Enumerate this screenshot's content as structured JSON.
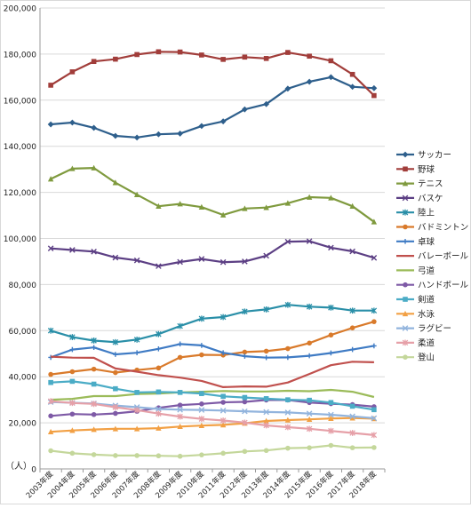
{
  "chart_data": {
    "type": "line",
    "title": "",
    "xlabel": "",
    "ylabel": "（人）",
    "ylim": [
      0,
      200000
    ],
    "y_ticks": [
      "0",
      "20,000",
      "40,000",
      "60,000",
      "80,000",
      "100,000",
      "120,000",
      "140,000",
      "160,000",
      "180,000",
      "200,000"
    ],
    "y_tick_values": [
      0,
      20000,
      40000,
      60000,
      80000,
      100000,
      120000,
      140000,
      160000,
      180000,
      200000
    ],
    "grid": true,
    "legend_position": "right",
    "categories": [
      "2003年度",
      "2004年度",
      "2005年度",
      "2006年度",
      "2007年度",
      "2008年度",
      "2009年度",
      "2010年度",
      "2011年度",
      "2012年度",
      "2013年度",
      "2014年度",
      "2015年度",
      "2016年度",
      "2017年度",
      "2018年度"
    ],
    "series": [
      {
        "name": "サッカー",
        "color": "#2e5f8c",
        "marker": "diamond",
        "values": [
          149500,
          150300,
          148000,
          144500,
          143800,
          145200,
          145500,
          148800,
          150800,
          156000,
          158300,
          165000,
          168000,
          170000,
          165800,
          165200
        ]
      },
      {
        "name": "野球",
        "color": "#a13d3a",
        "marker": "square",
        "values": [
          166500,
          172300,
          176800,
          177800,
          179800,
          181000,
          180900,
          179600,
          177700,
          178700,
          178100,
          180700,
          179100,
          177100,
          171200,
          162000
        ]
      },
      {
        "name": "テニス",
        "color": "#7f9a3e",
        "marker": "triangle",
        "values": [
          125800,
          130300,
          130600,
          124200,
          119000,
          114000,
          115000,
          113600,
          110200,
          113000,
          113400,
          115300,
          117900,
          117600,
          114000,
          107200
        ]
      },
      {
        "name": "バスケ",
        "color": "#5c3f84",
        "marker": "x",
        "values": [
          95700,
          95000,
          94300,
          91700,
          90500,
          88000,
          89800,
          91100,
          89700,
          90000,
          92500,
          98600,
          98800,
          96000,
          94400,
          91600
        ]
      },
      {
        "name": "陸上",
        "color": "#2a8fa8",
        "marker": "star",
        "values": [
          60000,
          57200,
          55700,
          55000,
          56100,
          58500,
          62000,
          65200,
          65900,
          68300,
          69200,
          71200,
          70400,
          70000,
          68700,
          68700
        ]
      },
      {
        "name": "バドミントン",
        "color": "#d97a2b",
        "marker": "circle",
        "values": [
          41000,
          42200,
          43300,
          41800,
          42900,
          43800,
          48400,
          49500,
          49400,
          50700,
          51100,
          52200,
          54600,
          58100,
          61200,
          63900
        ]
      },
      {
        "name": "卓球",
        "color": "#3f7bc4",
        "marker": "plus",
        "values": [
          48400,
          51800,
          52700,
          49700,
          50400,
          52100,
          54200,
          53600,
          50400,
          48900,
          48300,
          48400,
          49100,
          50300,
          51800,
          53400
        ]
      },
      {
        "name": "バレーボール",
        "color": "#c0504d",
        "marker": "none",
        "values": [
          48700,
          48300,
          48200,
          43600,
          42200,
          40700,
          39600,
          38200,
          35500,
          35800,
          35700,
          37500,
          41200,
          45000,
          46500,
          46300
        ]
      },
      {
        "name": "弓道",
        "color": "#9bbb59",
        "marker": "none",
        "values": [
          30000,
          30400,
          31600,
          31600,
          32500,
          32700,
          33200,
          33500,
          33800,
          33600,
          33600,
          33900,
          33700,
          34300,
          33500,
          31200
        ]
      },
      {
        "name": "ハンドボール",
        "color": "#7e5aa6",
        "marker": "circle",
        "values": [
          23000,
          23800,
          23600,
          24100,
          25000,
          26500,
          27700,
          28200,
          28900,
          29100,
          29900,
          29900,
          28800,
          28300,
          27900,
          27000
        ]
      },
      {
        "name": "剣道",
        "color": "#4bacc6",
        "marker": "square",
        "values": [
          37500,
          38000,
          36800,
          34800,
          33200,
          33400,
          33200,
          32700,
          31500,
          31000,
          30500,
          30000,
          29800,
          28800,
          27200,
          25700
        ]
      },
      {
        "name": "水泳",
        "color": "#f2a044",
        "marker": "triangle",
        "values": [
          16100,
          16700,
          17100,
          17400,
          17400,
          17700,
          18400,
          18800,
          19100,
          19800,
          20800,
          21200,
          21500,
          21900,
          22100,
          21800
        ]
      },
      {
        "name": "ラグビー",
        "color": "#92b4dd",
        "marker": "x",
        "values": [
          29000,
          28700,
          28400,
          27500,
          26800,
          26000,
          25700,
          25600,
          25300,
          25000,
          24700,
          24500,
          24000,
          23500,
          22800,
          22000
        ]
      },
      {
        "name": "柔道",
        "color": "#e6a0a8",
        "marker": "star",
        "values": [
          29400,
          28600,
          28200,
          26800,
          25500,
          24000,
          22700,
          21700,
          21000,
          20100,
          18900,
          18100,
          17400,
          16500,
          15600,
          14700
        ]
      },
      {
        "name": "登山",
        "color": "#c4d79b",
        "marker": "circle",
        "values": [
          7900,
          6800,
          6200,
          5800,
          5800,
          5700,
          5500,
          6100,
          6800,
          7600,
          8000,
          9000,
          9200,
          10200,
          9200,
          9300
        ]
      }
    ]
  }
}
